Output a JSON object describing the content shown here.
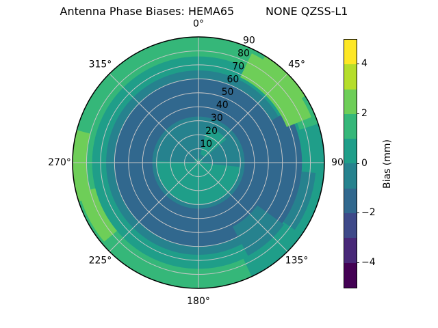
{
  "title": "Antenna Phase Biases: HEMA65         NONE QZSS-L1",
  "chart_data": {
    "type": "heatmap",
    "projection": "polar",
    "title": "Antenna Phase Biases: HEMA65         NONE QZSS-L1",
    "colormap": "viridis",
    "value_range": [
      -5,
      5
    ],
    "levels": [
      -5,
      -4,
      -3,
      -2,
      -1,
      0,
      1,
      2,
      3,
      4,
      5
    ],
    "level_colors": [
      "#440154",
      "#482878",
      "#3e4989",
      "#31688e",
      "#26828e",
      "#1f9e89",
      "#35b779",
      "#6ece58",
      "#b5de2b",
      "#fde725"
    ],
    "colorbar": {
      "label": "Bias (mm)",
      "tick_values": [
        4,
        2,
        0,
        -2,
        -4
      ],
      "tick_labels": [
        "4",
        "2",
        "0",
        "−2",
        "−4"
      ]
    },
    "theta_ticks": [
      {
        "angle": 0,
        "label": "0°"
      },
      {
        "angle": 45,
        "label": "45°"
      },
      {
        "angle": 90,
        "label": "90"
      },
      {
        "angle": 135,
        "label": "135°"
      },
      {
        "angle": 180,
        "label": "180°"
      },
      {
        "angle": 225,
        "label": "225°"
      },
      {
        "angle": 270,
        "label": "270°"
      },
      {
        "angle": 315,
        "label": "315°"
      }
    ],
    "r_ticks": [
      {
        "value": 10,
        "label": "10"
      },
      {
        "value": 20,
        "label": "20"
      },
      {
        "value": 30,
        "label": "30"
      },
      {
        "value": 40,
        "label": "40"
      },
      {
        "value": 50,
        "label": "50"
      },
      {
        "value": 60,
        "label": "60"
      },
      {
        "value": 70,
        "label": "70"
      },
      {
        "value": 80,
        "label": "80"
      },
      {
        "value": 90,
        "label": "90"
      }
    ],
    "r_max": 90,
    "r_label_angle": 22.5,
    "grid": {
      "color": "#c6c6c6",
      "r_step": 10,
      "theta_step_deg": 45
    },
    "radial_bands": [
      {
        "r_outer": 90,
        "bias": 1.5
      },
      {
        "r_outer": 76,
        "bias": 0.5
      },
      {
        "r_outer": 66,
        "bias": -0.5
      },
      {
        "r_outer": 60,
        "bias": -1.5
      },
      {
        "r_outer": 33,
        "bias": -0.5
      },
      {
        "r_outer": 30,
        "bias": 0.5
      }
    ],
    "patches": [
      {
        "az": [
          60,
          140
        ],
        "r": [
          60,
          74
        ],
        "bias": -1.5
      },
      {
        "az": [
          126,
          152
        ],
        "r": [
          52,
          76
        ],
        "bias": -0.5
      },
      {
        "az": [
          72,
          155
        ],
        "r": [
          75.5,
          90
        ],
        "bias": 0.5
      },
      {
        "az": [
          95,
          125
        ],
        "r": [
          74,
          84
        ],
        "bias": -0.5
      },
      {
        "az": [
          26,
          68
        ],
        "r": [
          68,
          87
        ],
        "bias": 2.5
      },
      {
        "az": [
          32,
          58
        ],
        "r": [
          70,
          90
        ],
        "bias": 2.5
      },
      {
        "az": [
          252,
          285
        ],
        "r": [
          80,
          90
        ],
        "bias": 2.5
      },
      {
        "az": [
          230,
          256
        ],
        "r": [
          76,
          88
        ],
        "bias": 2.5
      },
      {
        "az": [
          272,
          96
        ],
        "r": [
          3,
          30
        ],
        "bias": -0.5
      },
      {
        "az": [
          14,
          50
        ],
        "r": [
          6,
          26
        ],
        "bias": 0.5
      }
    ]
  }
}
